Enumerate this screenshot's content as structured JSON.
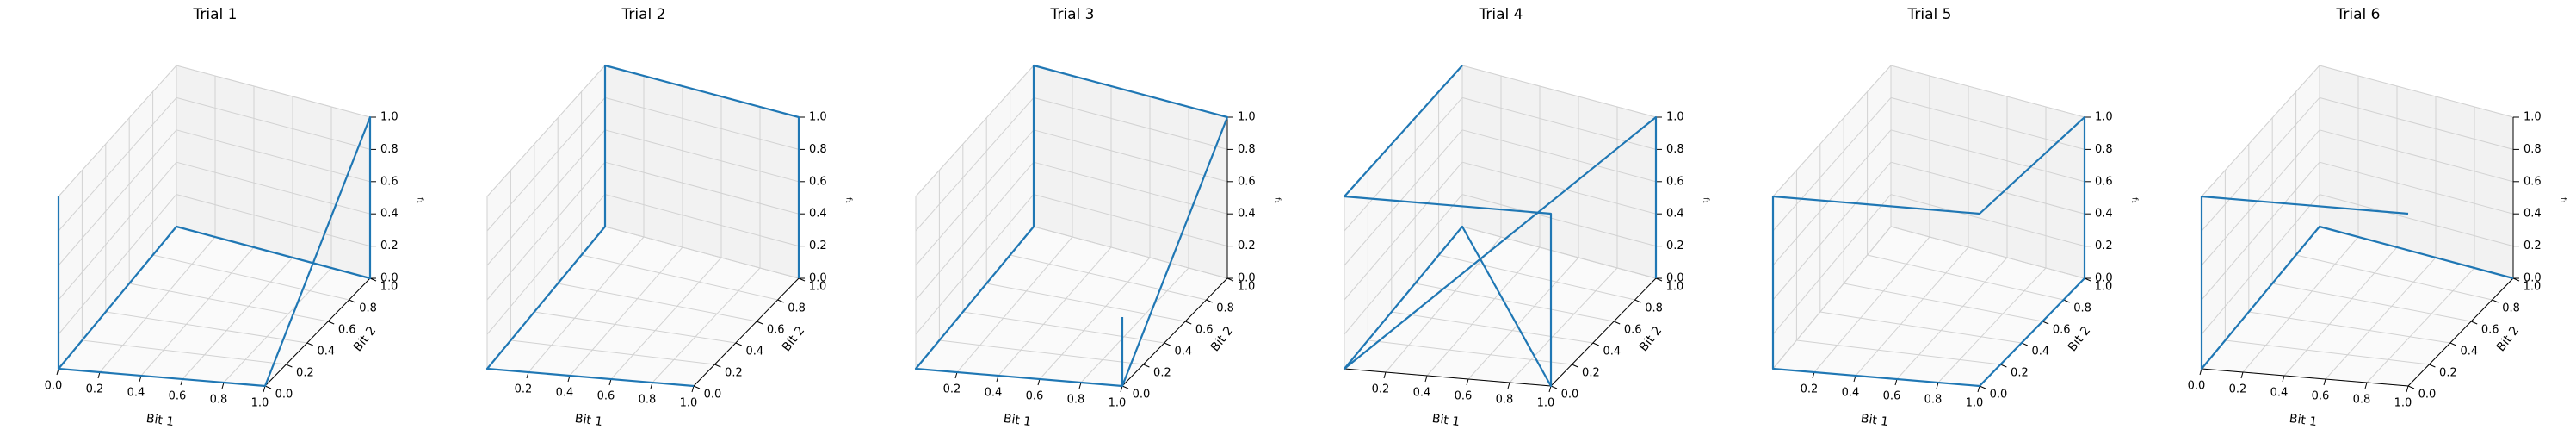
{
  "chart_data": [
    {
      "type": "line3d",
      "title": "Trial 1",
      "xlabel": "Bit 1",
      "ylabel": "Bit 2",
      "zlabel": "f₁",
      "xlim": [
        0,
        1
      ],
      "ylim": [
        0,
        1
      ],
      "zlim": [
        0,
        1
      ],
      "x": [
        0,
        1,
        1,
        1,
        0,
        0,
        0
      ],
      "y": [
        0,
        0,
        1,
        1,
        1,
        0,
        0
      ],
      "z": [
        0,
        0,
        1,
        0,
        0,
        0,
        1
      ],
      "xticks": [
        "0.0",
        "0.2",
        "0.4",
        "0.6",
        "0.8",
        "1.0"
      ],
      "yticks": [
        "0.0",
        "0.2",
        "0.4",
        "0.6",
        "0.8",
        "1.0"
      ],
      "zticks": [
        "0.0",
        "0.2",
        "0.4",
        "0.6",
        "0.8",
        "1.0"
      ]
    },
    {
      "type": "line3d",
      "title": "Trial 2",
      "xlabel": "Bit 1",
      "ylabel": "Bit 2",
      "zlabel": "f₁",
      "xlim": [
        0,
        1
      ],
      "ylim": [
        0,
        1
      ],
      "zlim": [
        0,
        1
      ],
      "x": [
        1,
        0,
        0,
        0,
        1,
        1
      ],
      "y": [
        0,
        0,
        1,
        1,
        1,
        1
      ],
      "z": [
        0,
        0,
        0,
        1,
        1,
        0
      ],
      "xticks": [
        "0.2",
        "0.4",
        "0.6",
        "0.8",
        "1.0"
      ],
      "yticks": [
        "0.0",
        "0.2",
        "0.4",
        "0.6",
        "0.8",
        "1.0"
      ],
      "zticks": [
        "0.0",
        "0.2",
        "0.4",
        "0.6",
        "0.8",
        "1.0"
      ]
    },
    {
      "type": "line3d",
      "title": "Trial 3",
      "xlabel": "Bit 1",
      "ylabel": "Bit 2",
      "zlabel": "f₁",
      "xlim": [
        0,
        1
      ],
      "ylim": [
        0,
        1
      ],
      "zlim": [
        0,
        1
      ],
      "x": [
        1,
        1,
        0,
        0,
        0,
        1,
        1
      ],
      "y": [
        0,
        0,
        0,
        1,
        1,
        1,
        0
      ],
      "z": [
        0.4,
        0,
        0,
        0,
        1,
        1,
        0
      ],
      "xticks": [
        "0.2",
        "0.4",
        "0.6",
        "0.8",
        "1.0"
      ],
      "yticks": [
        "0.0",
        "0.2",
        "0.4",
        "0.6",
        "0.8",
        "1.0"
      ],
      "zticks": [
        "0.0",
        "0.2",
        "0.4",
        "0.6",
        "0.8",
        "1.0"
      ]
    },
    {
      "type": "line3d",
      "title": "Trial 4",
      "xlabel": "Bit 1",
      "ylabel": "Bit 2",
      "zlabel": "f₁",
      "xlim": [
        0,
        1
      ],
      "ylim": [
        0,
        1
      ],
      "zlim": [
        0,
        1
      ],
      "x": [
        1,
        1,
        0,
        0,
        1,
        1,
        0,
        0
      ],
      "y": [
        1,
        1,
        0,
        1,
        0,
        0,
        0,
        1
      ],
      "z": [
        0,
        1,
        0,
        0,
        0,
        1,
        1,
        1
      ],
      "xticks": [
        "0.2",
        "0.4",
        "0.6",
        "0.8",
        "1.0"
      ],
      "yticks": [
        "0.0",
        "0.2",
        "0.4",
        "0.6",
        "0.8",
        "1.0"
      ],
      "zticks": [
        "0.0",
        "0.2",
        "0.4",
        "0.6",
        "0.8",
        "1.0"
      ]
    },
    {
      "type": "line3d",
      "title": "Trial 5",
      "xlabel": "Bit 1",
      "ylabel": "Bit 2",
      "zlabel": "f₁",
      "xlim": [
        0,
        1
      ],
      "ylim": [
        0,
        1
      ],
      "zlim": [
        0,
        1
      ],
      "x": [
        1,
        1,
        1,
        0,
        0,
        1,
        1,
        1
      ],
      "y": [
        1,
        1,
        0,
        0,
        0,
        0,
        1,
        1
      ],
      "z": [
        1,
        0,
        0,
        0,
        1,
        1,
        1,
        0
      ],
      "xticks": [
        "0.2",
        "0.4",
        "0.6",
        "0.8",
        "1.0"
      ],
      "yticks": [
        "0.0",
        "0.2",
        "0.4",
        "0.6",
        "0.8",
        "1.0"
      ],
      "zticks": [
        "0.0",
        "0.2",
        "0.4",
        "0.6",
        "0.8",
        "1.0"
      ]
    },
    {
      "type": "line3d",
      "title": "Trial 6",
      "xlabel": "Bit 1",
      "ylabel": "Bit 2",
      "zlabel": "f₁",
      "xlim": [
        0,
        1
      ],
      "ylim": [
        0,
        1
      ],
      "zlim": [
        0,
        1
      ],
      "x": [
        1,
        0,
        0,
        0,
        0,
        0,
        1
      ],
      "y": [
        1,
        1,
        1,
        0,
        0,
        0,
        0
      ],
      "z": [
        0,
        0,
        0,
        0,
        0,
        1,
        1
      ],
      "xticks": [
        "0.0",
        "0.2",
        "0.4",
        "0.6",
        "0.8",
        "1.0"
      ],
      "yticks": [
        "0.0",
        "0.2",
        "0.4",
        "0.6",
        "0.8",
        "1.0"
      ],
      "zticks": [
        "0.0",
        "0.2",
        "0.4",
        "0.6",
        "0.8",
        "1.0"
      ]
    }
  ]
}
